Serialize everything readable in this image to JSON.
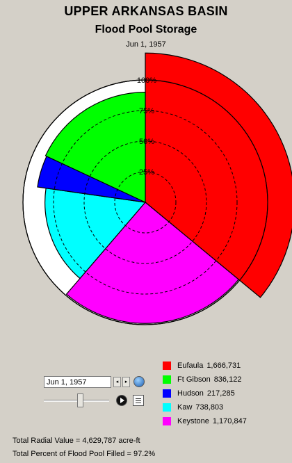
{
  "header": {
    "title": "UPPER ARKANSAS BASIN",
    "subtitle": "Flood Pool Storage",
    "date": "Jun 1, 1957"
  },
  "chart_data": {
    "type": "polar-area",
    "rings": [
      "25%",
      "50%",
      "75%",
      "100%"
    ],
    "series": [
      {
        "name": "Eufaula",
        "value_label": "1,666,731",
        "value": 1666731,
        "percent_full": 122,
        "color": "#ff0000"
      },
      {
        "name": "Keystone",
        "value_label": "1,170,847",
        "value": 1170847,
        "percent_full": 99,
        "color": "#ff00ff"
      },
      {
        "name": "Kaw",
        "value_label": "738,803",
        "value": 738803,
        "percent_full": 82,
        "color": "#00ffff"
      },
      {
        "name": "Hudson",
        "value_label": "217,285",
        "value": 217285,
        "percent_full": 89,
        "color": "#0000ff"
      },
      {
        "name": "Ft Gibson",
        "value_label": "836,122",
        "value": 836122,
        "percent_full": 90,
        "color": "#00ff00"
      }
    ]
  },
  "legend": [
    {
      "name": "Eufaula",
      "value": "1,666,731",
      "color": "#ff0000"
    },
    {
      "name": "Ft Gibson",
      "value": "836,122",
      "color": "#00ff00"
    },
    {
      "name": "Hudson",
      "value": "217,285",
      "color": "#0000ff"
    },
    {
      "name": "Kaw",
      "value": "738,803",
      "color": "#00ffff"
    },
    {
      "name": "Keystone",
      "value": "1,170,847",
      "color": "#ff00ff"
    }
  ],
  "controls": {
    "date_value": "Jun 1, 1957",
    "prev_glyph": "◂",
    "next_glyph": "▸",
    "slider_fraction": 0.55
  },
  "totals": {
    "radial": "Total Radial Value =  4,629,787 acre-ft",
    "percent": "Total Percent of Flood Pool Filled = 97.2%"
  }
}
